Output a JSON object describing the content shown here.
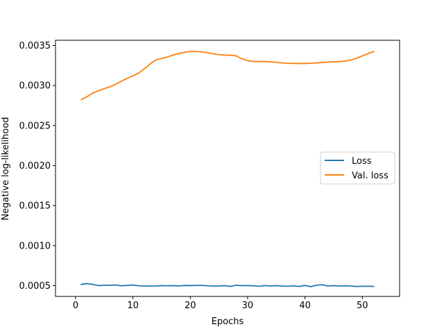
{
  "chart_data": {
    "type": "line",
    "title": "",
    "xlabel": "Epochs",
    "ylabel": "Negative log-likelihood",
    "xlim": [
      -3.5,
      56.5
    ],
    "ylim": [
      0.000365,
      0.003565
    ],
    "xticks": [
      0,
      10,
      20,
      30,
      40,
      50
    ],
    "xtick_labels": [
      "0",
      "10",
      "20",
      "30",
      "40",
      "50"
    ],
    "yticks": [
      0.0005,
      0.001,
      0.0015,
      0.002,
      0.0025,
      0.003,
      0.0035
    ],
    "ytick_labels": [
      "0.0005",
      "0.0010",
      "0.0015",
      "0.0020",
      "0.0025",
      "0.0030",
      "0.0035"
    ],
    "grid": false,
    "legend_position": "center-right",
    "x": [
      1,
      2,
      3,
      4,
      5,
      6,
      7,
      8,
      9,
      10,
      11,
      12,
      13,
      14,
      15,
      16,
      17,
      18,
      19,
      20,
      21,
      22,
      23,
      24,
      25,
      26,
      27,
      28,
      29,
      30,
      31,
      32,
      33,
      34,
      35,
      36,
      37,
      38,
      39,
      40,
      41,
      42,
      43,
      44,
      45,
      46,
      47,
      48,
      49,
      50,
      51,
      52
    ],
    "series": [
      {
        "name": "Loss",
        "color": "#1f77b4",
        "values": [
          0.000515,
          0.000525,
          0.000515,
          0.0005,
          0.000505,
          0.000505,
          0.000508,
          0.000498,
          0.000502,
          0.000508,
          0.000498,
          0.000495,
          0.000495,
          0.000495,
          0.0005,
          0.000498,
          0.0005,
          0.000495,
          0.000502,
          0.0005,
          0.000503,
          0.000503,
          0.000498,
          0.000495,
          0.000495,
          0.0005,
          0.00049,
          0.000505,
          0.0005,
          0.0005,
          0.000498,
          0.000492,
          0.0005,
          0.000495,
          0.0005,
          0.000495,
          0.000492,
          0.000498,
          0.00049,
          0.000502,
          0.000488,
          0.000505,
          0.00051,
          0.000495,
          0.0005,
          0.000495,
          0.000498,
          0.000495,
          0.00049,
          0.000492,
          0.000492,
          0.00049
        ]
      },
      {
        "name": "Val. loss",
        "color": "#ff7f0e",
        "values": [
          0.002825,
          0.00286,
          0.002905,
          0.002935,
          0.00296,
          0.002985,
          0.003015,
          0.003055,
          0.00309,
          0.00312,
          0.003155,
          0.00321,
          0.00327,
          0.00332,
          0.00334,
          0.003355,
          0.00338,
          0.0034,
          0.003415,
          0.003425,
          0.003425,
          0.00342,
          0.00341,
          0.003395,
          0.003385,
          0.00338,
          0.003378,
          0.00337,
          0.003335,
          0.00331,
          0.0033,
          0.0033,
          0.0033,
          0.003295,
          0.00329,
          0.003282,
          0.003278,
          0.003276,
          0.003275,
          0.003275,
          0.003278,
          0.003282,
          0.003288,
          0.003292,
          0.003296,
          0.0033,
          0.003305,
          0.003318,
          0.00334,
          0.00337,
          0.0034,
          0.003425
        ]
      }
    ]
  }
}
